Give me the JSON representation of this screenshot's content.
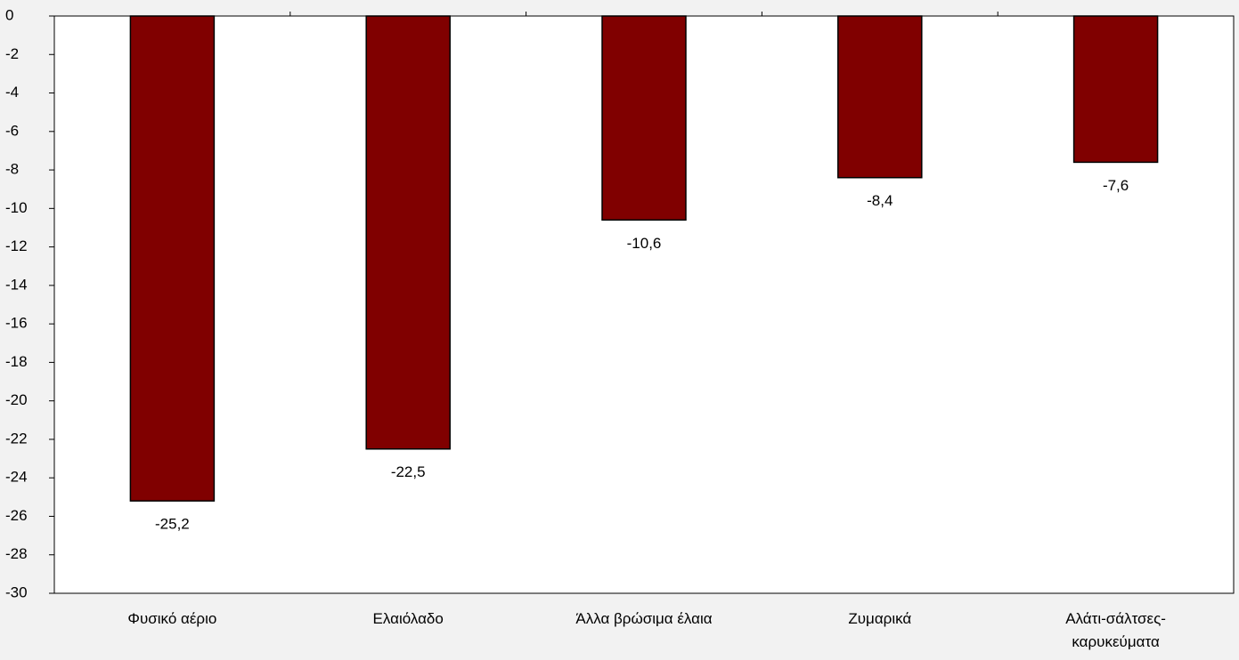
{
  "chart_data": {
    "type": "bar",
    "categories": [
      "Φυσικό αέριο",
      "Ελαιόλαδο",
      "Άλλα βρώσιμα έλαια",
      "Ζυμαρικά",
      "Αλάτι-σάλτσες-καρυκεύματα"
    ],
    "values": [
      -25.2,
      -22.5,
      -10.6,
      -8.4,
      -7.6
    ],
    "value_labels": [
      "-25,2",
      "-22,5",
      "-10,6",
      "-8,4",
      "-7,6"
    ],
    "color": "#800000",
    "ylim": [
      -30,
      0
    ],
    "yticks": [
      0,
      -2,
      -4,
      -6,
      -8,
      -10,
      -12,
      -14,
      -16,
      -18,
      -20,
      -22,
      -24,
      -26,
      -28,
      -30
    ],
    "grid": false
  }
}
